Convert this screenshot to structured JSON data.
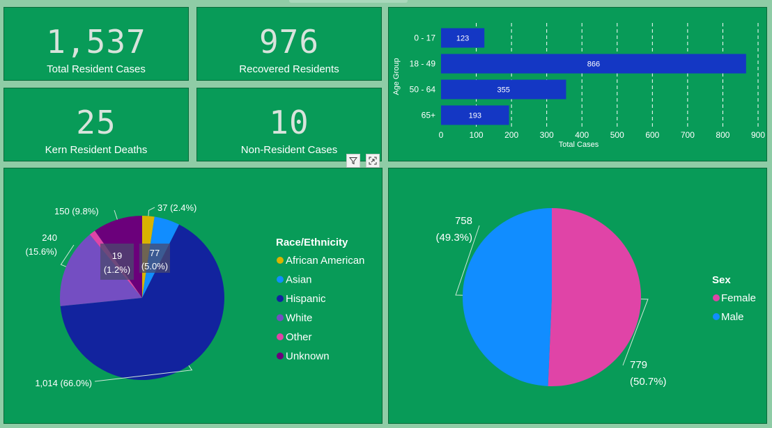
{
  "kpis": {
    "total_cases": {
      "value": "1,537",
      "label": "Total Resident Cases"
    },
    "recovered": {
      "value": "976",
      "label": "Recovered Residents"
    },
    "deaths": {
      "value": "25",
      "label": "Kern Resident Deaths"
    },
    "non_resident": {
      "value": "10",
      "label": "Non-Resident Cases"
    }
  },
  "colors": {
    "tile_bg": "#089b58",
    "page_bg": "#8fcca6",
    "bar": "#1437c4",
    "african_american": "#d9b300",
    "asian": "#118dff",
    "hispanic": "#12239e",
    "white": "#744ec2",
    "other": "#e044a7",
    "unknown": "#6b007b",
    "female": "#e044a7",
    "male": "#118dff"
  },
  "icons": {
    "filter": "filter-icon",
    "focus": "focus-mode-icon"
  },
  "chart_data": [
    {
      "type": "bar",
      "orientation": "horizontal",
      "categories": [
        "0 - 17",
        "18 - 49",
        "50 - 64",
        "65+"
      ],
      "values": [
        123,
        866,
        355,
        193
      ],
      "value_labels": [
        "123",
        "866",
        "355",
        "193"
      ],
      "xlabel": "Total Cases",
      "ylabel": "Age Group",
      "xlim": [
        0,
        900
      ],
      "xticks": [
        0,
        100,
        200,
        300,
        400,
        500,
        600,
        700,
        800,
        900
      ],
      "xtick_labels": [
        "0",
        "100",
        "200",
        "300",
        "400",
        "500",
        "600",
        "700",
        "800",
        "900"
      ],
      "grid": "vertical dashed"
    },
    {
      "type": "pie",
      "legend_title": "Race/Ethnicity",
      "legend_position": "right",
      "slices": [
        {
          "name": "African American",
          "value": 37,
          "label": "37 (2.4%)"
        },
        {
          "name": "Asian",
          "value": 77,
          "label": "77\n(5.0%)"
        },
        {
          "name": "Hispanic",
          "value": 1014,
          "label": "1,014 (66.0%)"
        },
        {
          "name": "White",
          "value": 240,
          "label": "240\n(15.6%)"
        },
        {
          "name": "Other",
          "value": 19,
          "label": "19\n(1.2%)"
        },
        {
          "name": "Unknown",
          "value": 150,
          "label": "150 (9.8%)"
        }
      ]
    },
    {
      "type": "pie",
      "legend_title": "Sex",
      "legend_position": "right",
      "slices": [
        {
          "name": "Female",
          "value": 779,
          "label": "779\n(50.7%)"
        },
        {
          "name": "Male",
          "value": 758,
          "label": "758\n(49.3%)"
        }
      ]
    }
  ]
}
